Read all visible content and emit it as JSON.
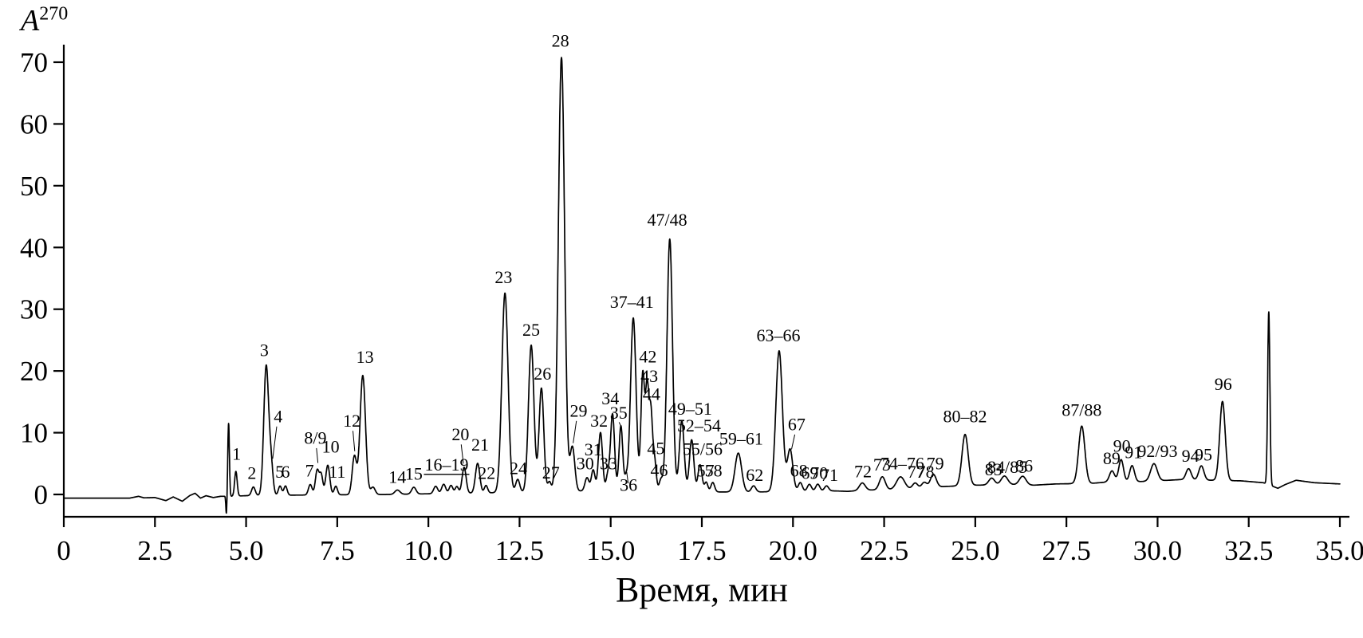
{
  "figure": {
    "ylabel_base": "A",
    "ylabel_sup": "270",
    "xlabel": "Время, мин"
  },
  "chart_data": {
    "type": "line",
    "title": "",
    "xlabel": "Время, мин",
    "ylabel": "A^270",
    "xlim": [
      0,
      35
    ],
    "ylim": [
      0,
      70
    ],
    "grid": false,
    "legend": false,
    "line_color": "#000000",
    "background_color": "#ffffff",
    "xticks": {
      "values": [
        0,
        2.5,
        5,
        7.5,
        10,
        12.5,
        15,
        17.5,
        20,
        22.5,
        25,
        27.5,
        30,
        32.5,
        35
      ],
      "labels": [
        "0",
        "2.5",
        "5.0",
        "7.5",
        "10.0",
        "12.5",
        "15.0",
        "17.5",
        "20.0",
        "22.5",
        "25.0",
        "27.5",
        "30.0",
        "32.5",
        "35.0"
      ]
    },
    "yticks": {
      "values": [
        0,
        10,
        20,
        30,
        40,
        50,
        60,
        70
      ],
      "labels": [
        "0",
        "10",
        "20",
        "30",
        "40",
        "50",
        "60",
        "70"
      ]
    },
    "baseline": [
      [
        0,
        -0.6
      ],
      [
        1.8,
        -0.6
      ],
      [
        2.05,
        -0.3
      ],
      [
        2.2,
        -0.55
      ],
      [
        2.5,
        -0.5
      ],
      [
        2.8,
        -1.0
      ],
      [
        3.0,
        -0.4
      ],
      [
        3.25,
        -1.1
      ],
      [
        3.45,
        -0.2
      ],
      [
        3.6,
        0.2
      ],
      [
        3.75,
        -0.6
      ],
      [
        3.9,
        -0.2
      ],
      [
        4.1,
        -0.5
      ],
      [
        4.3,
        -0.3
      ],
      [
        4.6,
        -0.3
      ],
      [
        5.0,
        -0.2
      ],
      [
        6.5,
        -0.1
      ],
      [
        9.0,
        0.0
      ],
      [
        9.9,
        0.1
      ],
      [
        11.0,
        0.2
      ],
      [
        12.0,
        0.3
      ],
      [
        14.0,
        0.5
      ],
      [
        15.5,
        1.0
      ],
      [
        16.5,
        0.8
      ],
      [
        17.0,
        0.6
      ],
      [
        18.0,
        0.4
      ],
      [
        19.0,
        0.4
      ],
      [
        20.0,
        0.5
      ],
      [
        21.0,
        0.6
      ],
      [
        21.5,
        0.5
      ],
      [
        22.0,
        0.7
      ],
      [
        22.7,
        0.8
      ],
      [
        23.2,
        0.9
      ],
      [
        24.2,
        1.3
      ],
      [
        25.0,
        1.5
      ],
      [
        26.0,
        1.6
      ],
      [
        26.6,
        1.5
      ],
      [
        27.2,
        1.7
      ],
      [
        28.2,
        1.8
      ],
      [
        28.6,
        2.0
      ],
      [
        29.6,
        2.1
      ],
      [
        30.3,
        2.3
      ],
      [
        30.6,
        2.4
      ],
      [
        31.5,
        2.3
      ],
      [
        32.3,
        2.2
      ],
      [
        32.9,
        1.9
      ],
      [
        33.3,
        1.0
      ],
      [
        33.5,
        1.6
      ],
      [
        33.8,
        2.3
      ],
      [
        34.3,
        1.9
      ],
      [
        35,
        1.7
      ]
    ],
    "components": [
      [
        4.46,
        -3.0,
        0.015
      ],
      [
        4.52,
        11.8,
        0.022
      ],
      [
        4.72,
        4.0,
        0.035
      ],
      [
        5.2,
        1.4,
        0.05
      ],
      [
        5.55,
        20.8,
        0.065
      ],
      [
        5.68,
        5.2,
        0.055
      ],
      [
        5.93,
        1.5,
        0.045
      ],
      [
        6.08,
        1.5,
        0.045
      ],
      [
        6.76,
        1.7,
        0.05
      ],
      [
        6.95,
        4.0,
        0.05
      ],
      [
        7.06,
        3.2,
        0.045
      ],
      [
        7.24,
        4.8,
        0.055
      ],
      [
        7.46,
        1.4,
        0.045
      ],
      [
        7.97,
        6.2,
        0.06
      ],
      [
        8.2,
        19.3,
        0.075
      ],
      [
        8.48,
        1.2,
        0.06
      ],
      [
        9.15,
        0.7,
        0.07
      ],
      [
        9.6,
        1.1,
        0.06
      ],
      [
        10.2,
        1.2,
        0.055
      ],
      [
        10.42,
        1.5,
        0.055
      ],
      [
        10.62,
        1.3,
        0.05
      ],
      [
        10.78,
        1.1,
        0.045
      ],
      [
        10.98,
        4.2,
        0.055
      ],
      [
        11.35,
        4.8,
        0.06
      ],
      [
        11.58,
        1.2,
        0.045
      ],
      [
        12.1,
        32.3,
        0.085
      ],
      [
        12.45,
        2.1,
        0.055
      ],
      [
        12.82,
        23.8,
        0.075
      ],
      [
        13.1,
        16.8,
        0.065
      ],
      [
        13.32,
        1.6,
        0.045
      ],
      [
        13.65,
        70.3,
        0.085
      ],
      [
        13.95,
        7.2,
        0.065
      ],
      [
        14.35,
        2.1,
        0.055
      ],
      [
        14.52,
        3.3,
        0.05
      ],
      [
        14.72,
        9.3,
        0.055
      ],
      [
        14.92,
        2.3,
        0.045
      ],
      [
        15.05,
        12.2,
        0.055
      ],
      [
        15.28,
        10.2,
        0.05
      ],
      [
        15.42,
        1.6,
        0.04
      ],
      [
        15.62,
        27.6,
        0.075
      ],
      [
        15.88,
        18.6,
        0.05
      ],
      [
        16.0,
        15.8,
        0.045
      ],
      [
        16.1,
        12.2,
        0.045
      ],
      [
        16.2,
        4.8,
        0.045
      ],
      [
        16.38,
        1.6,
        0.045
      ],
      [
        16.62,
        40.6,
        0.075
      ],
      [
        16.95,
        11.3,
        0.065
      ],
      [
        17.22,
        8.3,
        0.06
      ],
      [
        17.45,
        4.3,
        0.055
      ],
      [
        17.62,
        1.5,
        0.045
      ],
      [
        17.8,
        1.5,
        0.05
      ],
      [
        18.5,
        6.3,
        0.09
      ],
      [
        18.92,
        1.0,
        0.06
      ],
      [
        19.62,
        22.8,
        0.09
      ],
      [
        19.92,
        6.8,
        0.075
      ],
      [
        20.2,
        1.4,
        0.055
      ],
      [
        20.45,
        1.1,
        0.055
      ],
      [
        20.68,
        1.1,
        0.055
      ],
      [
        20.92,
        0.8,
        0.055
      ],
      [
        21.9,
        1.2,
        0.08
      ],
      [
        22.45,
        2.1,
        0.08
      ],
      [
        22.95,
        2.0,
        0.11
      ],
      [
        23.35,
        0.9,
        0.07
      ],
      [
        23.6,
        0.9,
        0.07
      ],
      [
        23.85,
        2.1,
        0.08
      ],
      [
        24.72,
        8.3,
        0.085
      ],
      [
        25.45,
        1.1,
        0.08
      ],
      [
        25.8,
        1.4,
        0.09
      ],
      [
        26.3,
        1.4,
        0.09
      ],
      [
        27.92,
        9.3,
        0.085
      ],
      [
        28.75,
        1.8,
        0.07
      ],
      [
        29.0,
        3.6,
        0.065
      ],
      [
        29.3,
        2.6,
        0.065
      ],
      [
        29.9,
        2.8,
        0.09
      ],
      [
        30.85,
        1.8,
        0.07
      ],
      [
        31.2,
        2.3,
        0.07
      ],
      [
        31.78,
        12.8,
        0.075
      ],
      [
        33.05,
        28.0,
        0.03
      ]
    ],
    "peak_labels": [
      {
        "t": "1",
        "x": 4.74,
        "y": 5.6
      },
      {
        "t": "2",
        "x": 5.16,
        "y": 2.5
      },
      {
        "t": "3",
        "x": 5.5,
        "y": 22.4
      },
      {
        "t": "4",
        "x": 5.88,
        "y": 11.7,
        "l": [
          5.84,
          11.0,
          5.73,
          5.8
        ]
      },
      {
        "t": "5",
        "x": 5.92,
        "y": 2.7
      },
      {
        "t": "6",
        "x": 6.08,
        "y": 2.7
      },
      {
        "t": "7",
        "x": 6.74,
        "y": 2.9
      },
      {
        "t": "8/9",
        "x": 6.9,
        "y": 8.2,
        "l": [
          6.93,
          7.5,
          6.97,
          5.1
        ]
      },
      {
        "t": "10",
        "x": 7.32,
        "y": 6.8
      },
      {
        "t": "11",
        "x": 7.5,
        "y": 2.7
      },
      {
        "t": "12",
        "x": 7.9,
        "y": 11.0,
        "l": [
          7.93,
          10.3,
          7.98,
          7.0
        ]
      },
      {
        "t": "13",
        "x": 8.26,
        "y": 21.3
      },
      {
        "t": "14",
        "x": 9.15,
        "y": 1.9
      },
      {
        "t": "15",
        "x": 9.6,
        "y": 2.4
      },
      {
        "t": "16–19",
        "x": 10.5,
        "y": 3.9,
        "u": true
      },
      {
        "t": "20",
        "x": 10.88,
        "y": 8.8,
        "l": [
          10.9,
          8.1,
          10.96,
          5.0
        ]
      },
      {
        "t": "21",
        "x": 11.42,
        "y": 7.1
      },
      {
        "t": "22",
        "x": 11.6,
        "y": 2.5
      },
      {
        "t": "23",
        "x": 12.06,
        "y": 34.2
      },
      {
        "t": "24",
        "x": 12.47,
        "y": 3.3
      },
      {
        "t": "25",
        "x": 12.82,
        "y": 25.7
      },
      {
        "t": "26",
        "x": 13.13,
        "y": 18.6
      },
      {
        "t": "27",
        "x": 13.36,
        "y": 2.6
      },
      {
        "t": "28",
        "x": 13.62,
        "y": 72.5
      },
      {
        "t": "29",
        "x": 14.12,
        "y": 12.6,
        "l": [
          14.06,
          11.9,
          13.97,
          8.3
        ]
      },
      {
        "t": "30",
        "x": 14.3,
        "y": 4.1
      },
      {
        "t": "31",
        "x": 14.52,
        "y": 6.3
      },
      {
        "t": "32",
        "x": 14.68,
        "y": 11.0
      },
      {
        "t": "33",
        "x": 14.94,
        "y": 4.1
      },
      {
        "t": "34",
        "x": 14.99,
        "y": 14.6
      },
      {
        "t": "35",
        "x": 15.22,
        "y": 12.3,
        "l": [
          15.23,
          11.7,
          15.27,
          11.2
        ]
      },
      {
        "t": "36",
        "x": 15.49,
        "y": 0.6,
        "l": [
          15.48,
          1.8,
          15.44,
          3.6
        ]
      },
      {
        "t": "37–41",
        "x": 15.58,
        "y": 30.2
      },
      {
        "t": "42",
        "x": 16.02,
        "y": 21.4
      },
      {
        "t": "43",
        "x": 16.06,
        "y": 18.2
      },
      {
        "t": "44",
        "x": 16.12,
        "y": 15.3
      },
      {
        "t": "45",
        "x": 16.24,
        "y": 6.5
      },
      {
        "t": "46",
        "x": 16.33,
        "y": 3.0
      },
      {
        "t": "47/48",
        "x": 16.55,
        "y": 43.5
      },
      {
        "t": "49–51",
        "x": 17.18,
        "y": 12.9
      },
      {
        "t": "52–54",
        "x": 17.42,
        "y": 10.2
      },
      {
        "t": "55/56",
        "x": 17.52,
        "y": 6.4
      },
      {
        "t": "57",
        "x": 17.6,
        "y": 2.9
      },
      {
        "t": "58",
        "x": 17.82,
        "y": 2.9
      },
      {
        "t": "59–61",
        "x": 18.58,
        "y": 8.1
      },
      {
        "t": "62",
        "x": 18.95,
        "y": 2.2
      },
      {
        "t": "63–66",
        "x": 19.6,
        "y": 24.8
      },
      {
        "t": "67",
        "x": 20.1,
        "y": 10.4,
        "l": [
          20.05,
          9.7,
          19.96,
          7.3
        ]
      },
      {
        "t": "68",
        "x": 20.16,
        "y": 2.9
      },
      {
        "t": "69",
        "x": 20.46,
        "y": 2.5
      },
      {
        "t": "70",
        "x": 20.72,
        "y": 2.5
      },
      {
        "t": "71",
        "x": 21.0,
        "y": 2.2
      },
      {
        "t": "72",
        "x": 21.92,
        "y": 2.8
      },
      {
        "t": "73",
        "x": 22.44,
        "y": 3.9
      },
      {
        "t": "74–76",
        "x": 23.0,
        "y": 4.1
      },
      {
        "t": "77",
        "x": 23.38,
        "y": 2.7
      },
      {
        "t": "78",
        "x": 23.64,
        "y": 2.7
      },
      {
        "t": "79",
        "x": 23.9,
        "y": 4.1
      },
      {
        "t": "80–82",
        "x": 24.72,
        "y": 11.7
      },
      {
        "t": "83",
        "x": 25.5,
        "y": 3.1
      },
      {
        "t": "84/85",
        "x": 25.88,
        "y": 3.5
      },
      {
        "t": "86",
        "x": 26.34,
        "y": 3.7
      },
      {
        "t": "87/88",
        "x": 27.92,
        "y": 12.7
      },
      {
        "t": "89",
        "x": 28.74,
        "y": 4.9
      },
      {
        "t": "90",
        "x": 29.02,
        "y": 6.9
      },
      {
        "t": "91",
        "x": 29.34,
        "y": 5.9
      },
      {
        "t": "92/93",
        "x": 30.0,
        "y": 6.1
      },
      {
        "t": "94",
        "x": 30.9,
        "y": 5.3
      },
      {
        "t": "95",
        "x": 31.26,
        "y": 5.5
      },
      {
        "t": "96",
        "x": 31.8,
        "y": 16.9
      }
    ]
  }
}
